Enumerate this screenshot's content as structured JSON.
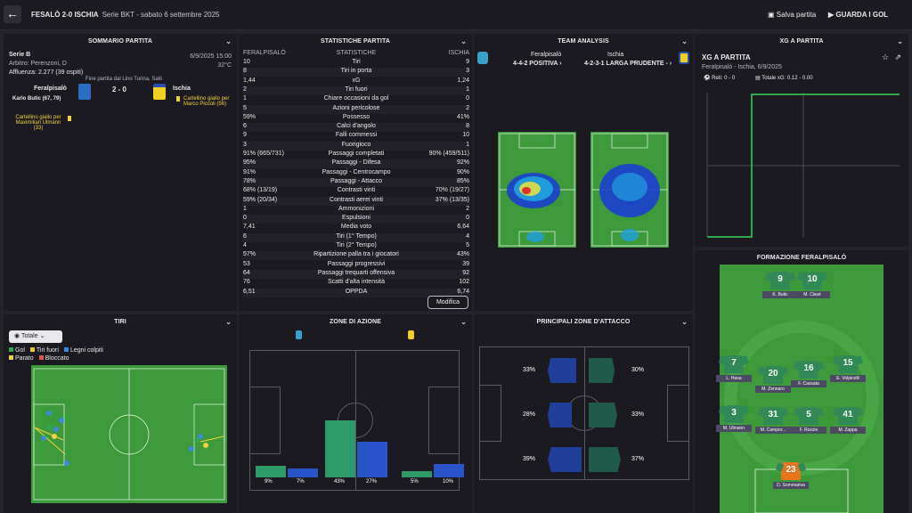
{
  "topbar": {
    "title": "FESALÒ 2-0 ISCHIA",
    "subtitle": "Serie BKT - sabato 6 settembre 2025",
    "save": "Salva partita",
    "watch": "GUARDA I GOL"
  },
  "summary": {
    "header": "SOMMARIO PARTITA",
    "competition": "Serie B",
    "datetime": "6/9/2025 15:00",
    "referee": "Arbitro: Perenzoni, D",
    "temp": "32°C",
    "attendance": "Affluenza: 2.277 (39 ospiti)",
    "stadium": "Fine partita dal Lino Turina, Salò",
    "home": "Feralpisalò",
    "away": "Ischia",
    "score": "2 - 0",
    "scorer": "Karlo Butic (67, 79)",
    "away_card": "Cartellino giallo per Marco Piccoli (56)",
    "home_card": "Cartellino giallo per Maximilian Ulmann (33)"
  },
  "stats": {
    "header": "STATISTICHE PARTITA",
    "col_home": "FERALPISALÒ",
    "col_mid": "STATISTICHE",
    "col_away": "ISCHIA",
    "modify": "Modifica",
    "rows": [
      {
        "h": "10",
        "n": "Tiri",
        "a": "9"
      },
      {
        "h": "8",
        "n": "Tiri in porta",
        "a": "3"
      },
      {
        "h": "1,44",
        "n": "xG",
        "a": "1,24"
      },
      {
        "h": "2",
        "n": "Tiri fuori",
        "a": "1"
      },
      {
        "h": "1",
        "n": "Chiare occasioni da gol",
        "a": "0"
      },
      {
        "h": "5",
        "n": "Azioni pericolose",
        "a": "2"
      },
      {
        "h": "59%",
        "n": "Possesso",
        "a": "41%"
      },
      {
        "h": "6",
        "n": "Calci d'angolo",
        "a": "8"
      },
      {
        "h": "9",
        "n": "Falli commessi",
        "a": "10"
      },
      {
        "h": "3",
        "n": "Fuorigioco",
        "a": "1"
      },
      {
        "h": "91% (665/731)",
        "n": "Passaggi completati",
        "a": "90% (459/511)"
      },
      {
        "h": "95%",
        "n": "Passaggi - Difesa",
        "a": "92%"
      },
      {
        "h": "91%",
        "n": "Passaggi - Centrocampo",
        "a": "90%"
      },
      {
        "h": "78%",
        "n": "Passaggi - Attacco",
        "a": "85%"
      },
      {
        "h": "68% (13/19)",
        "n": "Contrasti vinti",
        "a": "70% (19/27)"
      },
      {
        "h": "59% (20/34)",
        "n": "Contrasti aerei vinti",
        "a": "37% (13/35)"
      },
      {
        "h": "1",
        "n": "Ammonizioni",
        "a": "2"
      },
      {
        "h": "0",
        "n": "Espulsioni",
        "a": "0"
      },
      {
        "h": "7,41",
        "n": "Media voto",
        "a": "6,64"
      },
      {
        "h": "6",
        "n": "Tiri (1° Tempo)",
        "a": "4"
      },
      {
        "h": "4",
        "n": "Tiri (2° Tempo)",
        "a": "5"
      },
      {
        "h": "57%",
        "n": "Ripartizione palla tra i giocatori",
        "a": "43%"
      },
      {
        "h": "53",
        "n": "Passaggi progressivi",
        "a": "39"
      },
      {
        "h": "64",
        "n": "Passaggi trequarti offensiva",
        "a": "92"
      },
      {
        "h": "76",
        "n": "Scatti d'alta intensità",
        "a": "102"
      },
      {
        "h": "6,51",
        "n": "OPPDA",
        "a": "6,74"
      }
    ]
  },
  "team": {
    "header": "TEAM ANALYSIS",
    "home": "Feralpisalò",
    "home_form": "4-4-2 POSITIVA ›",
    "away": "Ischia",
    "away_form": "4-2-3-1 LARGA PRUDENTE - ›"
  },
  "xg": {
    "header": "XG A PARTITA",
    "title": "XG A PARTITA",
    "sub": "Feralpisalò - Ischia, 6/9/2025",
    "goals": "Reti: 0 - 0",
    "total": "Totale xG: 0.12 - 0.00"
  },
  "shots": {
    "header": "TIRI",
    "filter": "Totale",
    "legend": [
      {
        "label": "Gol",
        "color": "#2ea84f"
      },
      {
        "label": "Tiri fuori",
        "color": "#e8c530"
      },
      {
        "label": "Legni colpiti",
        "color": "#3a8be0"
      },
      {
        "label": "Parato",
        "color": "#f2d23b"
      },
      {
        "label": "Bloccato",
        "color": "#e05548"
      }
    ]
  },
  "zones": {
    "header": "ZONE DI AZIONE",
    "values": [
      9,
      7,
      43,
      27,
      5,
      10
    ],
    "labels": [
      "9%",
      "7%",
      "43%",
      "27%",
      "5%",
      "10%"
    ]
  },
  "attack": {
    "header": "PRINCIPALI ZONE D'ATTACCO",
    "home": [
      33,
      28,
      39
    ],
    "home_labels": [
      "33%",
      "28%",
      "39%"
    ],
    "away": [
      30,
      33,
      37
    ],
    "away_labels": [
      "30%",
      "33%",
      "37%"
    ]
  },
  "formation": {
    "header": "FORMAZIONE FERALPISALÒ",
    "players": [
      {
        "n": "9",
        "name": "K. Butic"
      },
      {
        "n": "10",
        "name": "M. Cissé"
      },
      {
        "n": "7",
        "name": "L. Hasa"
      },
      {
        "n": "20",
        "name": "M. Zennaro"
      },
      {
        "n": "16",
        "name": "F. Cassata"
      },
      {
        "n": "15",
        "name": "E. Volpicelli"
      },
      {
        "n": "3",
        "name": "M. Ulmann"
      },
      {
        "n": "31",
        "name": "M. Campor..."
      },
      {
        "n": "5",
        "name": "F. Rozzio"
      },
      {
        "n": "41",
        "name": "M. Zappa"
      },
      {
        "n": "23",
        "name": "D. Sommariva"
      }
    ]
  },
  "colors": {
    "bg": "#24232a",
    "panel": "#1b1a20",
    "pitch": "#3c9a3a",
    "home_bar": "#2e9a68",
    "away_bar": "#2a55c8"
  }
}
